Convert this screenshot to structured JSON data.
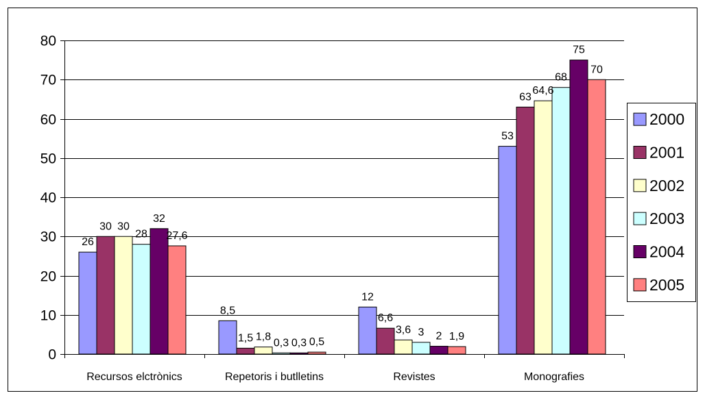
{
  "chart_data": {
    "type": "bar",
    "categories": [
      "Recursos elctrònics",
      "Repetoris i butlletins",
      "Revistes",
      "Monografies"
    ],
    "series": [
      {
        "name": "2000",
        "color": "#9999ff",
        "values": [
          26,
          8.5,
          12,
          53
        ],
        "labels": [
          "26",
          "8,5",
          "12",
          "53"
        ]
      },
      {
        "name": "2001",
        "color": "#993366",
        "values": [
          30,
          1.5,
          6.6,
          63
        ],
        "labels": [
          "30",
          "1,5",
          "6,6",
          "63"
        ]
      },
      {
        "name": "2002",
        "color": "#ffffcc",
        "values": [
          30,
          1.8,
          3.6,
          64.6
        ],
        "labels": [
          "30",
          "1,8",
          "3,6",
          "64,6"
        ]
      },
      {
        "name": "2003",
        "color": "#ccffff",
        "values": [
          28,
          0.3,
          3,
          68
        ],
        "labels": [
          "28",
          "0,3",
          "3",
          "68"
        ]
      },
      {
        "name": "2004",
        "color": "#660066",
        "values": [
          32,
          0.3,
          2,
          75
        ],
        "labels": [
          "32",
          "0,3",
          "2",
          "75"
        ]
      },
      {
        "name": "2005",
        "color": "#ff8080",
        "values": [
          27.6,
          0.5,
          1.9,
          70
        ],
        "labels": [
          "27,6",
          "0,5",
          "1,9",
          "70"
        ]
      }
    ],
    "yticks": [
      "0",
      "10",
      "20",
      "30",
      "40",
      "50",
      "60",
      "70",
      "80"
    ],
    "ylim": [
      0,
      80
    ],
    "grid": true,
    "legend": "right"
  }
}
